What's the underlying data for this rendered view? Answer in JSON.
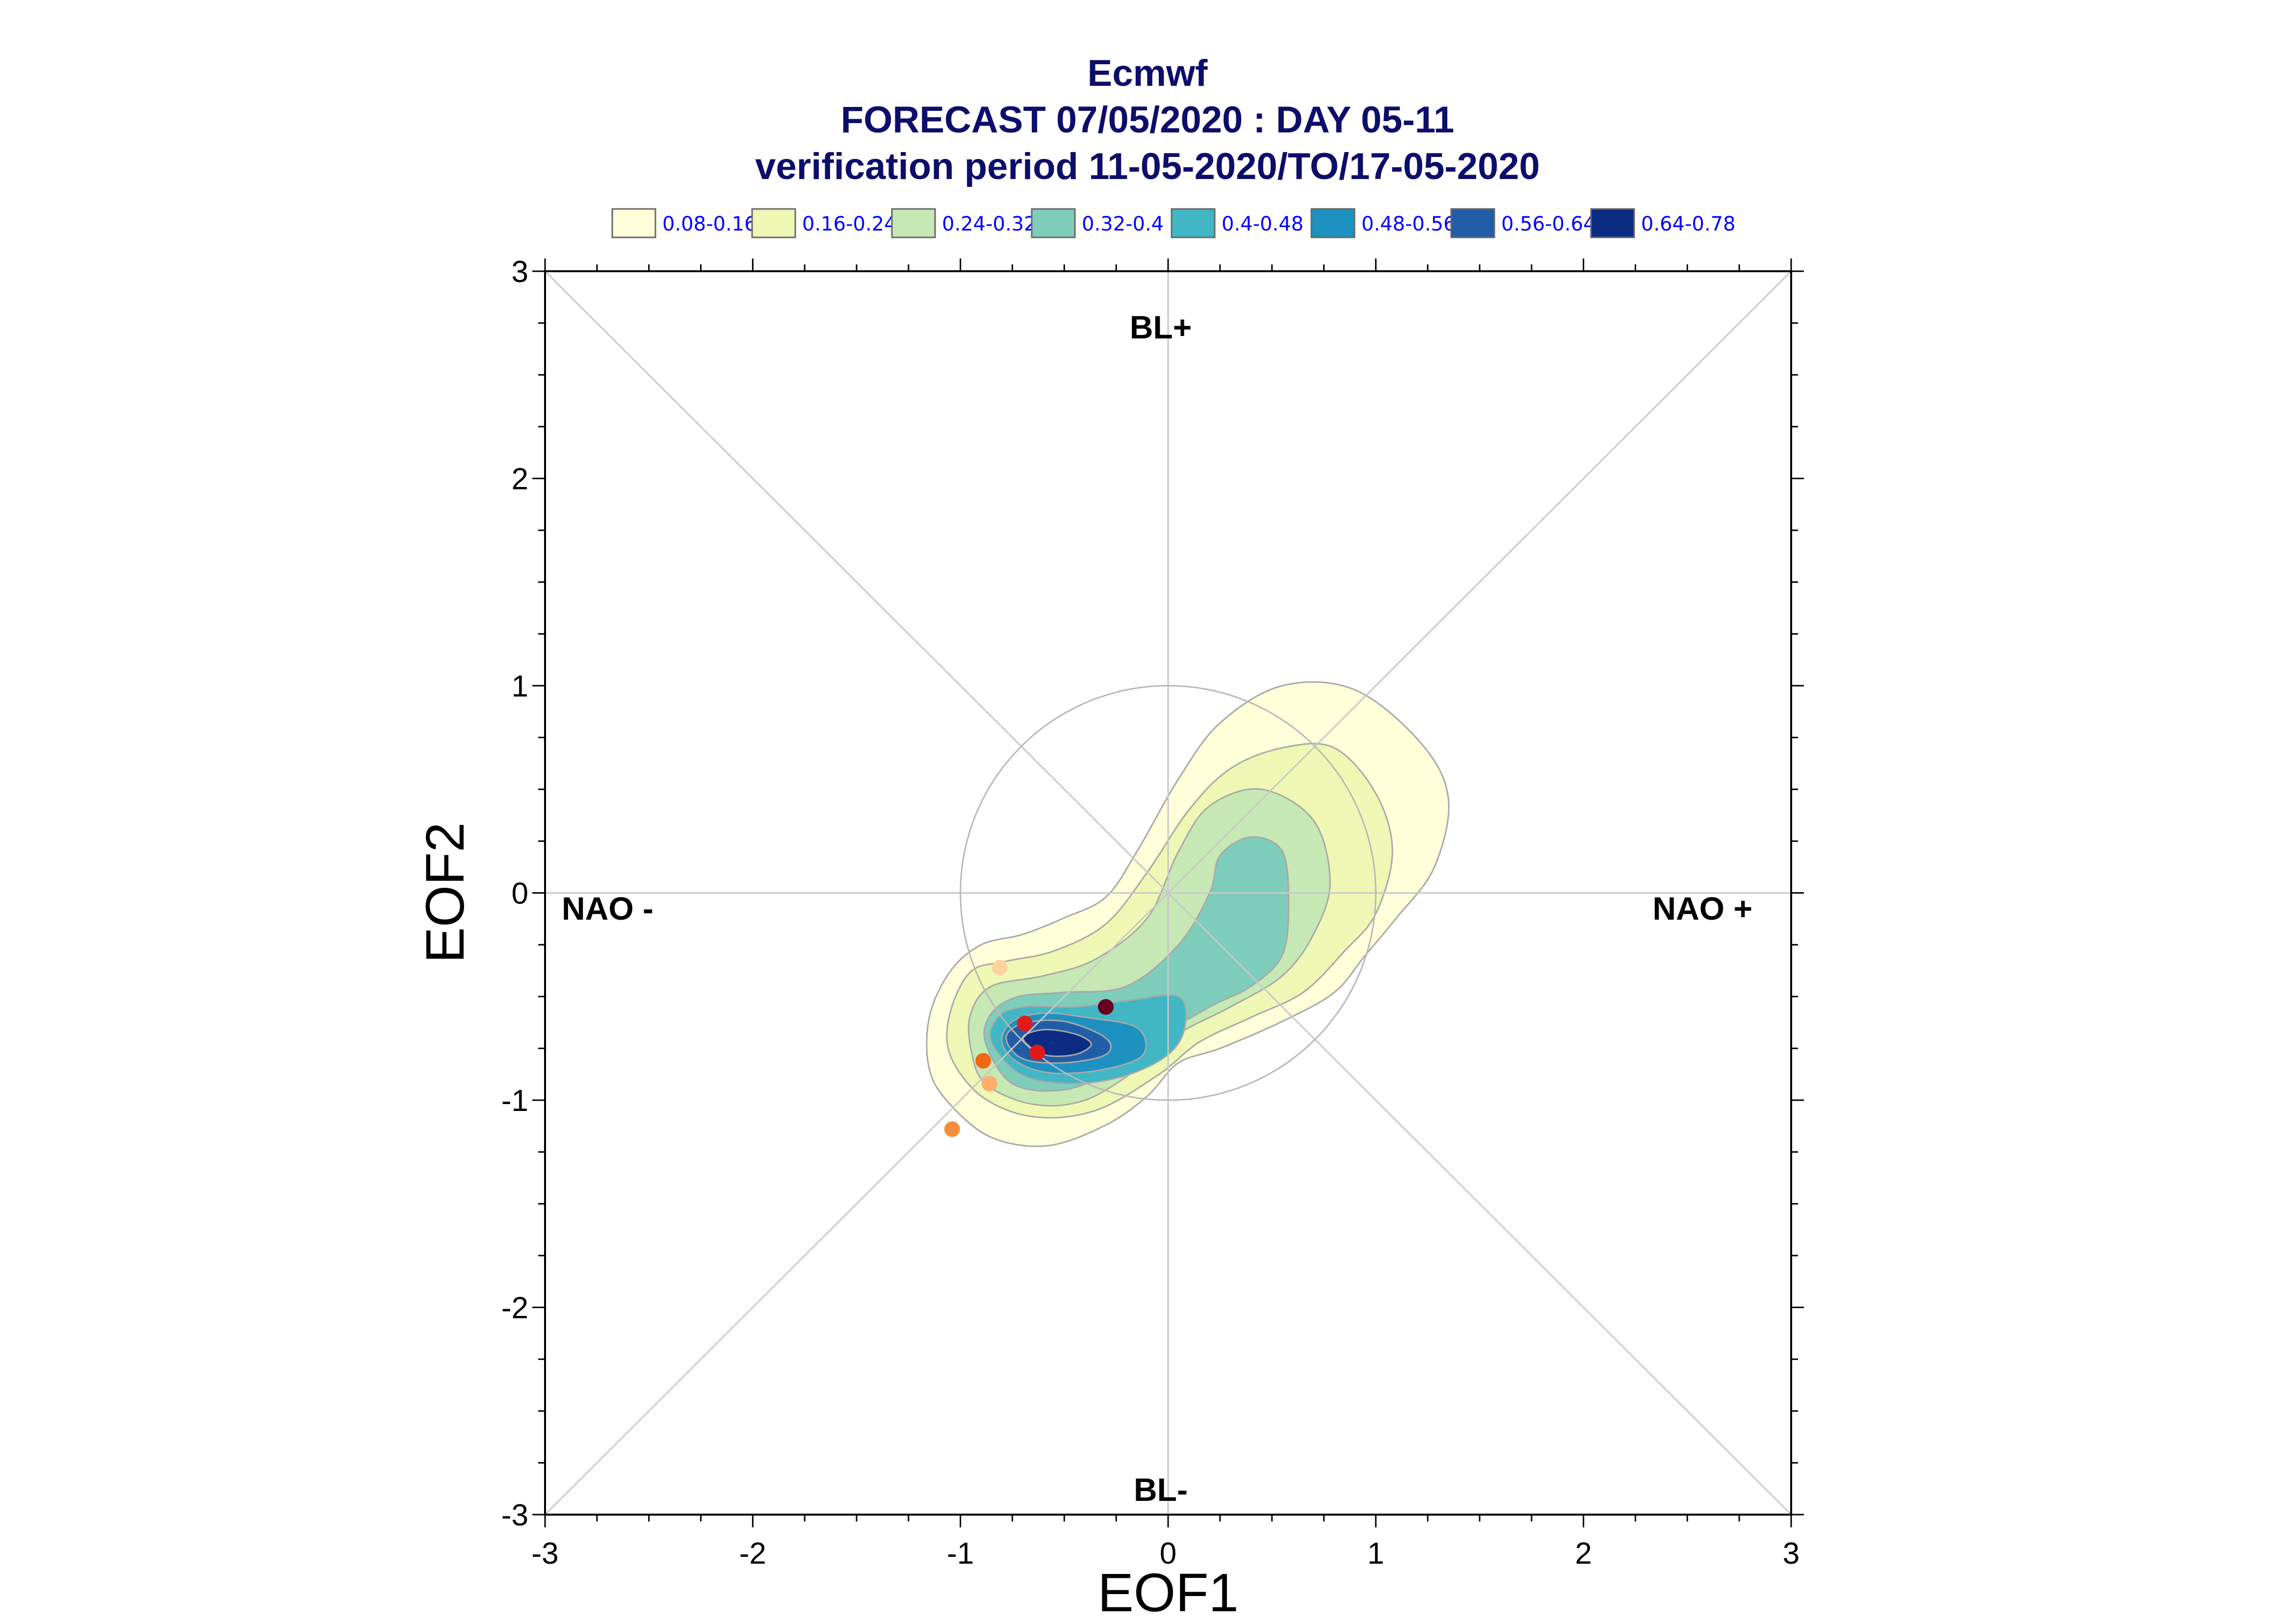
{
  "chart_data": {
    "type": "contour-scatter",
    "title_lines": [
      "Ecmwf",
      "FORECAST 07/05/2020 : DAY 05-11",
      "verification period 11-05-2020/TO/17-05-2020"
    ],
    "xlabel": "EOF1",
    "ylabel": "EOF2",
    "xlim": [
      -3,
      3
    ],
    "ylim": [
      -3,
      3
    ],
    "xticks": [
      "-3",
      "-2",
      "-1",
      "0",
      "1",
      "2",
      "3"
    ],
    "yticks": [
      "-3",
      "-2",
      "-1",
      "0",
      "1",
      "2",
      "3"
    ],
    "grid": false,
    "regime_labels": {
      "top": "BL+",
      "bottom": "BL-",
      "left": "NAO -",
      "right": "NAO +"
    },
    "legend": {
      "placement": "top",
      "entries": [
        {
          "label": "0.08-0.16",
          "color": "#ffffd9"
        },
        {
          "label": "0.16-0.24",
          "color": "#eef8b4"
        },
        {
          "label": "0.24-0.32",
          "color": "#c6e8b4"
        },
        {
          "label": "0.32-0.4",
          "color": "#7ecdbb"
        },
        {
          "label": "0.4-0.48",
          "color": "#41b6c4"
        },
        {
          "label": "0.48-0.56",
          "color": "#1d91c0"
        },
        {
          "label": "0.56-0.64",
          "color": "#225ea8"
        },
        {
          "label": "0.64-0.78",
          "color": "#0c2c84"
        }
      ]
    },
    "reference_circle_radius": 1.0,
    "density_levels": [
      {
        "level": 0.08,
        "color": "#ffffd9",
        "points": [
          [
            -1.15,
            -0.85
          ],
          [
            -1.15,
            -0.6
          ],
          [
            -1.05,
            -0.38
          ],
          [
            -0.9,
            -0.25
          ],
          [
            -0.7,
            -0.2
          ],
          [
            -0.5,
            -0.12
          ],
          [
            -0.3,
            -0.02
          ],
          [
            -0.15,
            0.2
          ],
          [
            0.05,
            0.55
          ],
          [
            0.25,
            0.82
          ],
          [
            0.55,
            1.0
          ],
          [
            0.9,
            0.98
          ],
          [
            1.22,
            0.72
          ],
          [
            1.35,
            0.45
          ],
          [
            1.28,
            0.12
          ],
          [
            1.1,
            -0.12
          ],
          [
            0.95,
            -0.3
          ],
          [
            0.8,
            -0.48
          ],
          [
            0.55,
            -0.62
          ],
          [
            0.25,
            -0.75
          ],
          [
            0.05,
            -0.82
          ],
          [
            -0.1,
            -0.98
          ],
          [
            -0.3,
            -1.12
          ],
          [
            -0.58,
            -1.22
          ],
          [
            -0.85,
            -1.18
          ],
          [
            -1.05,
            -1.02
          ]
        ]
      },
      {
        "level": 0.16,
        "color": "#eef8b4",
        "points": [
          [
            -1.05,
            -0.78
          ],
          [
            -1.05,
            -0.58
          ],
          [
            -0.95,
            -0.38
          ],
          [
            -0.78,
            -0.33
          ],
          [
            -0.55,
            -0.28
          ],
          [
            -0.3,
            -0.15
          ],
          [
            -0.1,
            0.1
          ],
          [
            0.1,
            0.4
          ],
          [
            0.3,
            0.6
          ],
          [
            0.55,
            0.7
          ],
          [
            0.8,
            0.7
          ],
          [
            1.0,
            0.48
          ],
          [
            1.08,
            0.2
          ],
          [
            1.0,
            -0.1
          ],
          [
            0.85,
            -0.28
          ],
          [
            0.65,
            -0.48
          ],
          [
            0.4,
            -0.6
          ],
          [
            0.15,
            -0.72
          ],
          [
            -0.05,
            -0.88
          ],
          [
            -0.35,
            -1.05
          ],
          [
            -0.65,
            -1.08
          ],
          [
            -0.9,
            -0.98
          ]
        ]
      },
      {
        "level": 0.24,
        "color": "#c6e8b4",
        "points": [
          [
            -0.95,
            -0.75
          ],
          [
            -0.95,
            -0.58
          ],
          [
            -0.85,
            -0.45
          ],
          [
            -0.6,
            -0.4
          ],
          [
            -0.35,
            -0.32
          ],
          [
            -0.1,
            -0.12
          ],
          [
            0.05,
            0.2
          ],
          [
            0.2,
            0.42
          ],
          [
            0.45,
            0.5
          ],
          [
            0.7,
            0.35
          ],
          [
            0.78,
            0.05
          ],
          [
            0.7,
            -0.2
          ],
          [
            0.55,
            -0.4
          ],
          [
            0.3,
            -0.55
          ],
          [
            0.05,
            -0.68
          ],
          [
            -0.15,
            -0.85
          ],
          [
            -0.4,
            -1.0
          ],
          [
            -0.65,
            -1.02
          ],
          [
            -0.88,
            -0.92
          ]
        ]
      },
      {
        "level": 0.32,
        "color": "#7ecdbb",
        "points": [
          [
            -0.88,
            -0.72
          ],
          [
            -0.85,
            -0.58
          ],
          [
            -0.72,
            -0.5
          ],
          [
            -0.5,
            -0.48
          ],
          [
            -0.2,
            -0.45
          ],
          [
            0.05,
            -0.25
          ],
          [
            0.2,
            0.0
          ],
          [
            0.25,
            0.18
          ],
          [
            0.4,
            0.27
          ],
          [
            0.55,
            0.2
          ],
          [
            0.58,
            -0.05
          ],
          [
            0.55,
            -0.3
          ],
          [
            0.4,
            -0.45
          ],
          [
            0.2,
            -0.55
          ],
          [
            -0.05,
            -0.7
          ],
          [
            -0.25,
            -0.85
          ],
          [
            -0.5,
            -0.95
          ],
          [
            -0.75,
            -0.92
          ]
        ]
      },
      {
        "level": 0.4,
        "color": "#41b6c4",
        "points": [
          [
            -0.85,
            -0.72
          ],
          [
            -0.82,
            -0.6
          ],
          [
            -0.7,
            -0.55
          ],
          [
            -0.45,
            -0.55
          ],
          [
            -0.2,
            -0.52
          ],
          [
            0.05,
            -0.5
          ],
          [
            0.08,
            -0.65
          ],
          [
            0.0,
            -0.78
          ],
          [
            -0.2,
            -0.88
          ],
          [
            -0.45,
            -0.92
          ],
          [
            -0.7,
            -0.88
          ]
        ]
      },
      {
        "level": 0.48,
        "color": "#1d91c0",
        "points": [
          [
            -0.8,
            -0.72
          ],
          [
            -0.75,
            -0.62
          ],
          [
            -0.6,
            -0.58
          ],
          [
            -0.4,
            -0.6
          ],
          [
            -0.15,
            -0.65
          ],
          [
            -0.12,
            -0.78
          ],
          [
            -0.3,
            -0.85
          ],
          [
            -0.55,
            -0.87
          ],
          [
            -0.72,
            -0.82
          ]
        ]
      },
      {
        "level": 0.56,
        "color": "#225ea8",
        "points": [
          [
            -0.78,
            -0.7
          ],
          [
            -0.7,
            -0.63
          ],
          [
            -0.5,
            -0.62
          ],
          [
            -0.3,
            -0.7
          ],
          [
            -0.3,
            -0.78
          ],
          [
            -0.5,
            -0.82
          ],
          [
            -0.7,
            -0.8
          ]
        ]
      },
      {
        "level": 0.64,
        "color": "#0c2c84",
        "points": [
          [
            -0.7,
            -0.7
          ],
          [
            -0.6,
            -0.66
          ],
          [
            -0.45,
            -0.68
          ],
          [
            -0.37,
            -0.73
          ],
          [
            -0.45,
            -0.78
          ],
          [
            -0.6,
            -0.78
          ]
        ]
      }
    ],
    "scatter_points": [
      {
        "x": -0.81,
        "y": -0.36,
        "color": "#fdd49e"
      },
      {
        "x": -0.3,
        "y": -0.55,
        "color": "#67001f"
      },
      {
        "x": -0.69,
        "y": -0.63,
        "color": "#e31a1c"
      },
      {
        "x": -0.63,
        "y": -0.77,
        "color": "#e31a1c"
      },
      {
        "x": -0.89,
        "y": -0.81,
        "color": "#f16913"
      },
      {
        "x": -0.86,
        "y": -0.92,
        "color": "#fdae6b"
      },
      {
        "x": -1.04,
        "y": -1.14,
        "color": "#f58d3d"
      }
    ]
  }
}
